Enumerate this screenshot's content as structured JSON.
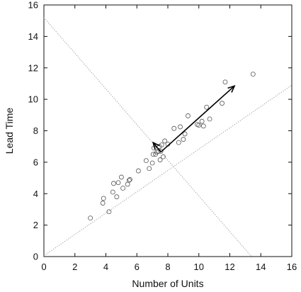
{
  "chart_data": {
    "type": "scatter",
    "title": "",
    "xlabel": "Number of Units",
    "ylabel": "Lead Time",
    "xlim": [
      0,
      16
    ],
    "ylim": [
      0,
      16
    ],
    "xticks": [
      "0",
      "2",
      "4",
      "6",
      "8",
      "10",
      "12",
      "14",
      "16"
    ],
    "yticks": [
      "0",
      "2",
      "4",
      "6",
      "8",
      "10",
      "12",
      "14",
      "16"
    ],
    "grid": false,
    "legend": "none",
    "colors": {
      "axis": "#111111",
      "points": "#555555",
      "guide_lines": "#999999",
      "arrows": "#000000"
    },
    "points": {
      "x": [
        3.0,
        3.8,
        3.85,
        4.2,
        4.45,
        4.5,
        4.7,
        4.8,
        5.0,
        5.1,
        5.4,
        5.5,
        5.55,
        6.1,
        6.6,
        6.8,
        7.0,
        7.05,
        7.1,
        7.2,
        7.3,
        7.4,
        7.45,
        7.5,
        7.55,
        7.6,
        7.7,
        7.8,
        8.0,
        8.4,
        8.7,
        8.8,
        9.0,
        9.1,
        9.3,
        9.9,
        10.0,
        10.2,
        10.3,
        10.5,
        10.7,
        11.5,
        11.7,
        13.5
      ],
      "y": [
        2.45,
        3.4,
        3.7,
        2.85,
        4.1,
        4.65,
        3.8,
        4.7,
        5.05,
        4.35,
        4.6,
        4.85,
        4.9,
        5.45,
        6.1,
        5.6,
        5.95,
        6.5,
        6.9,
        6.5,
        6.65,
        6.7,
        7.0,
        6.15,
        6.7,
        7.1,
        6.35,
        7.35,
        7.15,
        8.15,
        7.25,
        8.25,
        7.45,
        7.8,
        8.95,
        8.4,
        8.35,
        8.6,
        8.3,
        9.5,
        8.75,
        9.75,
        11.1,
        11.6
      ]
    },
    "lines": [
      {
        "x": [
          0,
          16
        ],
        "y": [
          0.05,
          10.9
        ],
        "style": "dotted"
      },
      {
        "x": [
          0,
          13.4
        ],
        "y": [
          15.2,
          0
        ],
        "style": "dotted"
      }
    ],
    "arrows": [
      {
        "from": [
          7.55,
          6.65
        ],
        "to": [
          12.3,
          10.85
        ]
      },
      {
        "from": [
          7.55,
          6.65
        ],
        "to": [
          7.05,
          7.25
        ]
      }
    ]
  }
}
